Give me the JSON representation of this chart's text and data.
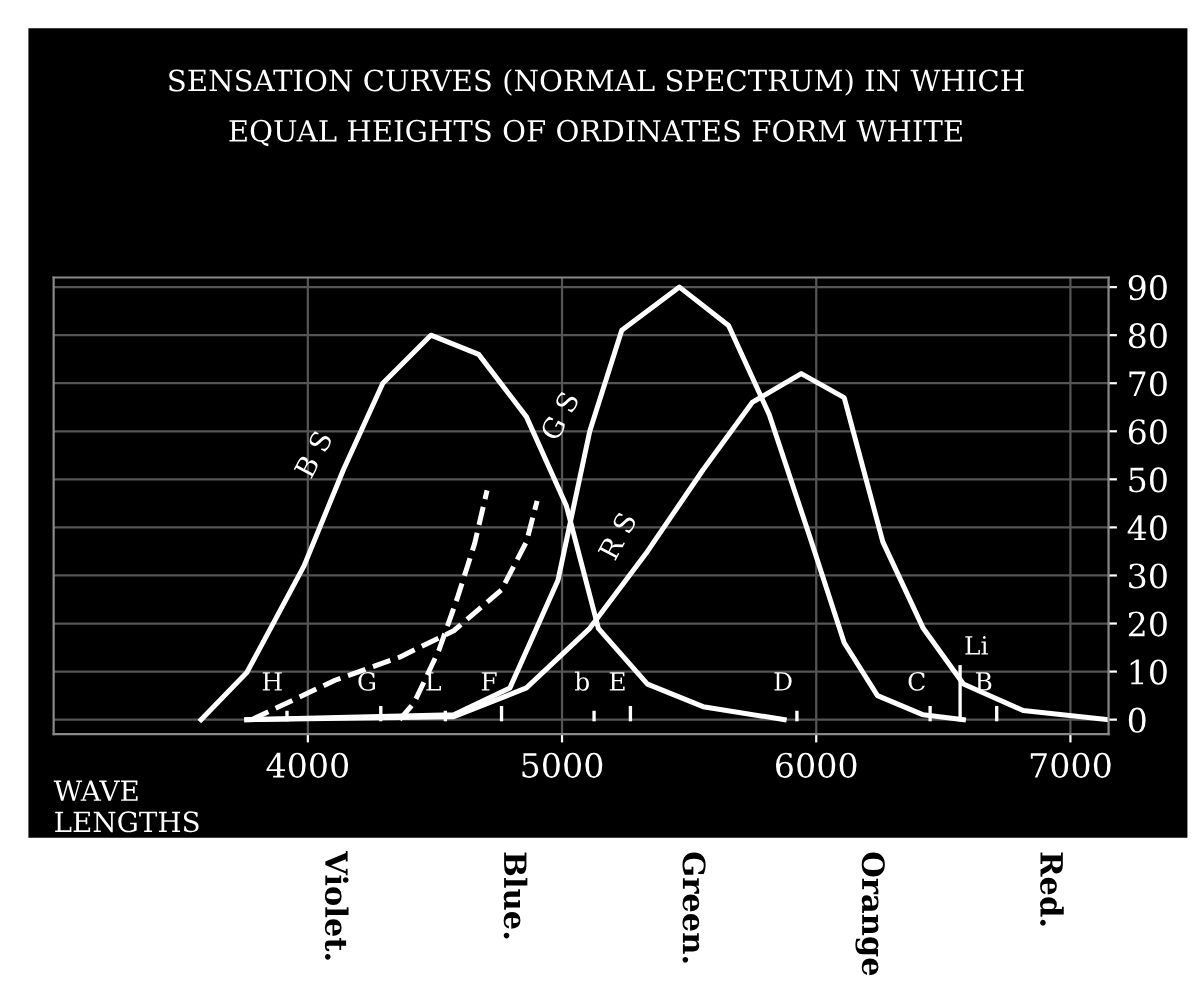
{
  "chart_data": {
    "type": "line",
    "title": "SENSATION CURVES (NORMAL SPECTRUM) IN WHICH\nEQUAL HEIGHTS OF ORDINATES FORM WHITE",
    "xlabel": "WAVE\nLENGTHS",
    "series": [
      {
        "name": "B S",
        "color": "#ffffff",
        "x": [
          3580,
          3760,
          3985,
          4140,
          4295,
          4484,
          4672,
          4860,
          5017,
          5143,
          5336,
          5555,
          5874
        ],
        "values": [
          0,
          9.8,
          32,
          52,
          70,
          80,
          76,
          63,
          44.5,
          19,
          7.4,
          2.7,
          0
        ]
      },
      {
        "name": "G S",
        "color": "#ffffff",
        "x": [
          3760,
          4574,
          4795,
          4984,
          5109,
          5235,
          5462,
          5655,
          5815,
          5975,
          6110,
          6241,
          6421,
          6579
        ],
        "values": [
          0,
          1,
          6.6,
          29,
          60,
          81,
          90,
          82,
          63.5,
          38,
          16,
          5,
          1,
          0
        ]
      },
      {
        "name": "R S",
        "color": "#ffffff",
        "x": [
          3760,
          4574,
          4860,
          5109,
          5336,
          5555,
          5748,
          5941,
          6110,
          6262,
          6421,
          6579,
          6814,
          7150
        ],
        "values": [
          0,
          0.6,
          6.6,
          19,
          35,
          52,
          66,
          72,
          67,
          37,
          19,
          7.4,
          1.9,
          0
        ]
      },
      {
        "color": "#ffffff",
        "line_style": "dashed",
        "x": [
          4361,
          4418,
          4516,
          4590,
          4656,
          4705
        ],
        "values": [
          0,
          3.5,
          14.5,
          25.6,
          36.6,
          47.7
        ]
      },
      {
        "color": "#ffffff",
        "line_style": "dashed",
        "x": [
          3779,
          4107,
          4361,
          4574,
          4762,
          4860,
          4902
        ],
        "values": [
          0,
          8.2,
          13,
          18.5,
          27,
          37,
          45.5
        ]
      }
    ],
    "xlim": [
      3000,
      7150
    ],
    "xticks": [
      4000,
      5000,
      6000,
      7000
    ],
    "ylim": [
      -3,
      92
    ],
    "yticks": [
      0,
      10,
      20,
      30,
      40,
      50,
      60,
      70,
      80,
      90
    ],
    "grid": true,
    "line_style": "solid",
    "marker": "none",
    "ref_lines": [
      {
        "axis": "x",
        "value": 3918,
        "label": "H"
      },
      {
        "axis": "x",
        "value": 4287,
        "label": "G"
      },
      {
        "axis": "x",
        "value": 4541,
        "label": "L"
      },
      {
        "axis": "x",
        "value": 4762,
        "label": "F"
      },
      {
        "axis": "x",
        "value": 5126,
        "label": "b"
      },
      {
        "axis": "x",
        "value": 5269,
        "label": "E"
      },
      {
        "axis": "x",
        "value": 5924,
        "label": "D"
      },
      {
        "axis": "x",
        "value": 6448,
        "label": "C"
      },
      {
        "axis": "x",
        "value": 6566,
        "label": "Li"
      },
      {
        "axis": "x",
        "value": 6710,
        "label": "B"
      }
    ],
    "annotations": [
      "Violet.",
      "Blue.",
      "Green.",
      "Orange",
      "Red."
    ]
  }
}
